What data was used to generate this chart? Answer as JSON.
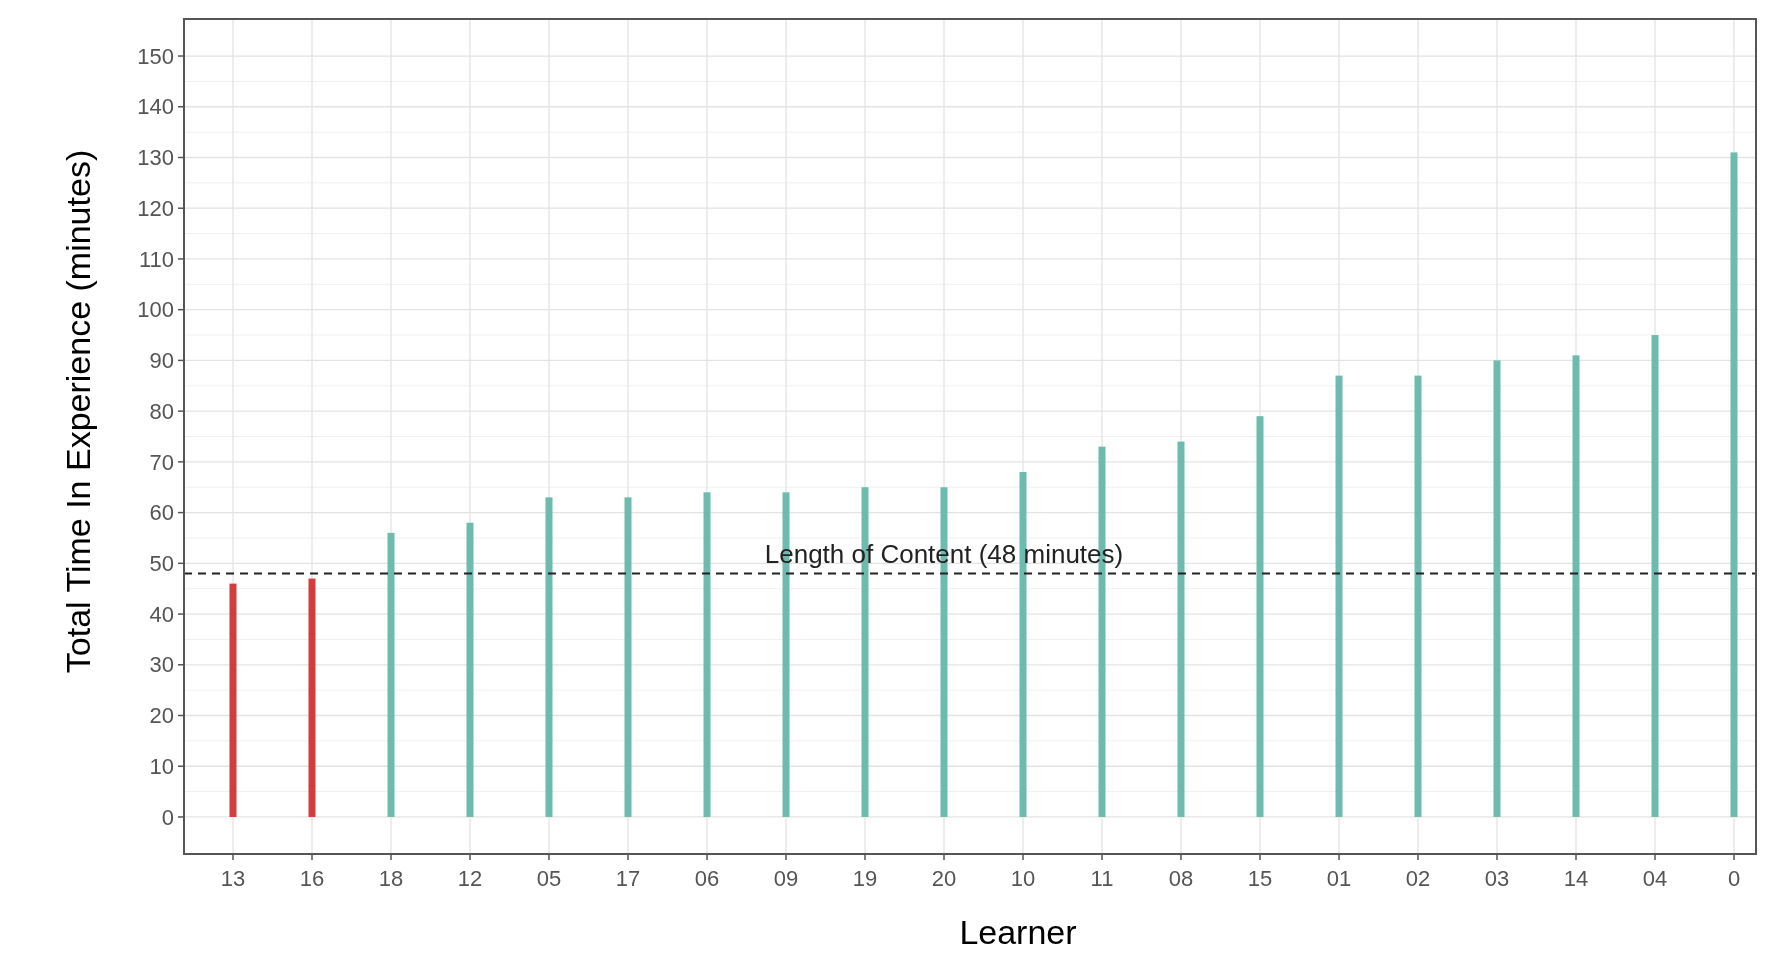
{
  "chart_data": {
    "type": "bar",
    "xlabel": "Learner",
    "ylabel": "Total Time In Experience (minutes)",
    "categories": [
      "13",
      "16",
      "18",
      "12",
      "05",
      "17",
      "06",
      "09",
      "19",
      "20",
      "10",
      "11",
      "08",
      "15",
      "01",
      "02",
      "03",
      "14",
      "04",
      "0"
    ],
    "values": [
      46,
      47,
      56,
      58,
      63,
      63,
      64,
      64,
      65,
      65,
      68,
      73,
      74,
      79,
      87,
      87,
      90,
      91,
      95,
      131
    ],
    "colors": [
      "#d23c3c",
      "#d23c3c",
      "#6dbbae",
      "#6dbbae",
      "#6dbbae",
      "#6dbbae",
      "#6dbbae",
      "#6dbbae",
      "#6dbbae",
      "#6dbbae",
      "#6dbbae",
      "#6dbbae",
      "#6dbbae",
      "#6dbbae",
      "#6dbbae",
      "#6dbbae",
      "#6dbbae",
      "#6dbbae",
      "#6dbbae",
      "#6dbbae"
    ],
    "ylim": [
      -7.3,
      157.3
    ],
    "yticks": [
      0,
      10,
      20,
      30,
      40,
      50,
      60,
      70,
      80,
      90,
      100,
      110,
      120,
      130,
      140,
      150
    ],
    "grid": true,
    "ref_lines": [
      {
        "axis": "y",
        "value": 48,
        "label": "Length of Content (48 minutes)",
        "color": "#222222",
        "line_style": "dashed"
      }
    ]
  }
}
